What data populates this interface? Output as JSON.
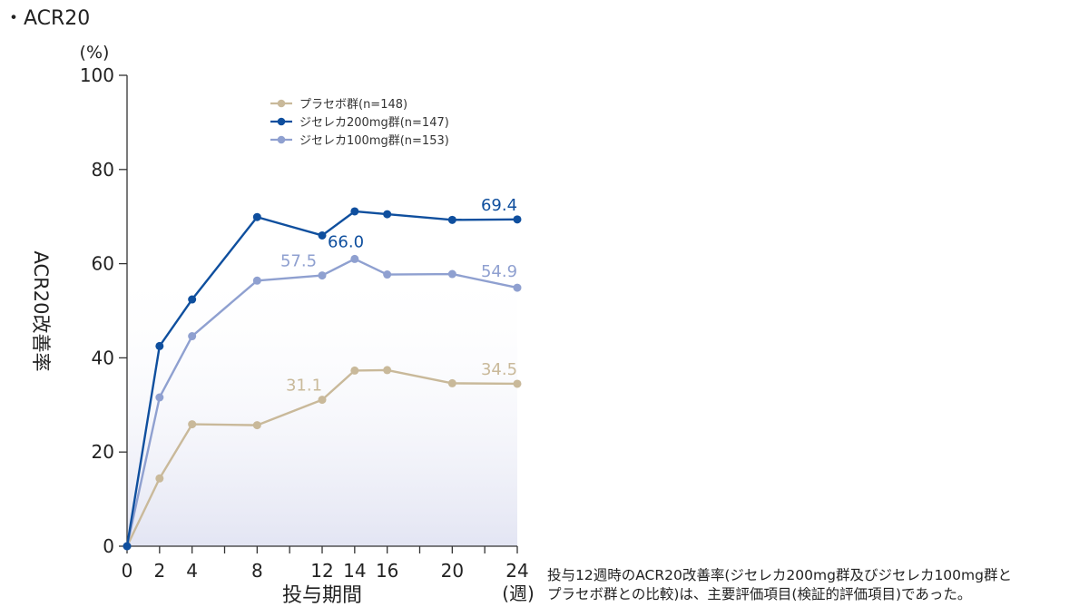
{
  "section_title": "・ACR20",
  "chart_data": {
    "type": "line",
    "ylabel": "ACR20改善率",
    "yunit": "(%)",
    "xlabel": "投与期間",
    "xunit": "(週)",
    "ylim": [
      0,
      100
    ],
    "yticks": [
      0,
      20,
      40,
      60,
      80,
      100
    ],
    "xlim": [
      0,
      24
    ],
    "xticks": [
      0,
      2,
      4,
      8,
      12,
      14,
      16,
      20,
      24
    ],
    "x": [
      0,
      2,
      4,
      8,
      12,
      14,
      16,
      20,
      24
    ],
    "series": [
      {
        "name": "プラセボ群(n=148)",
        "color": "#c9b99a",
        "values": [
          0,
          14.4,
          25.9,
          25.7,
          31.1,
          37.3,
          37.4,
          34.6,
          34.5
        ]
      },
      {
        "name": "ジセレカ200mg群(n=147)",
        "color": "#0f4f9e",
        "values": [
          0,
          42.5,
          52.4,
          69.9,
          66.0,
          71.1,
          70.5,
          69.3,
          69.4
        ]
      },
      {
        "name": "ジセレカ100mg群(n=153)",
        "color": "#8fa0d0",
        "values": [
          0,
          31.6,
          44.6,
          56.4,
          57.5,
          61.0,
          57.7,
          57.8,
          54.9
        ]
      }
    ],
    "data_labels": [
      {
        "series": 0,
        "x": 12,
        "text": "31.1"
      },
      {
        "series": 0,
        "x": 24,
        "text": "34.5"
      },
      {
        "series": 1,
        "x": 12,
        "text": "66.0"
      },
      {
        "series": 1,
        "x": 24,
        "text": "69.4"
      },
      {
        "series": 2,
        "x": 12,
        "text": "57.5"
      },
      {
        "series": 2,
        "x": 24,
        "text": "54.9"
      }
    ],
    "legend_position": "top-center",
    "grid": false
  },
  "footnote": {
    "line1": "投与12週時のACR20改善率(ジセレカ200mg群及びジセレカ100mg群と",
    "line2": "プラセボ群との比較)は、主要評価項目(検証的評価項目)であった。"
  }
}
